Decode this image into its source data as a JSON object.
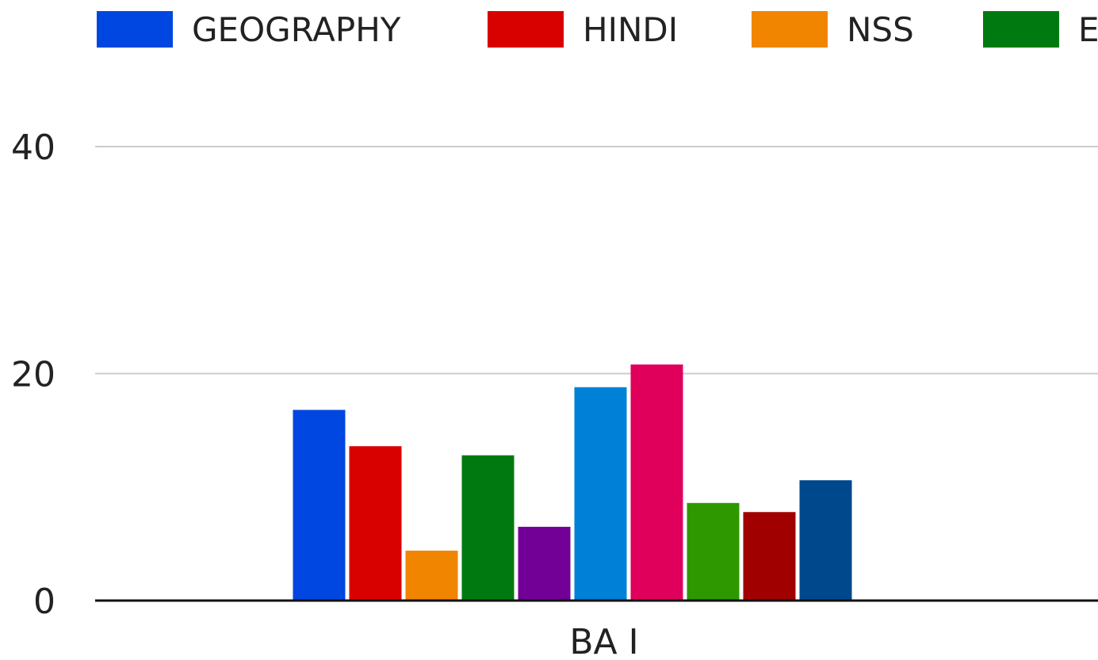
{
  "chart_data": {
    "type": "bar",
    "categories": [
      "BA I"
    ],
    "series": [
      {
        "name": "GEOGRAPHY",
        "color": "#0046e0",
        "values": [
          16.8
        ]
      },
      {
        "name": "HINDI",
        "color": "#d90000",
        "values": [
          13.6
        ]
      },
      {
        "name": "NSS",
        "color": "#f28500",
        "values": [
          4.4
        ]
      },
      {
        "name": "E",
        "color": "#007a10",
        "values": [
          12.8
        ]
      },
      {
        "color": "#720096",
        "values": [
          6.5
        ]
      },
      {
        "color": "#0080d6",
        "values": [
          18.8
        ]
      },
      {
        "color": "#e0005c",
        "values": [
          20.8
        ]
      },
      {
        "color": "#2e9800",
        "values": [
          8.6
        ]
      },
      {
        "color": "#a00000",
        "values": [
          7.8
        ]
      },
      {
        "color": "#00488c",
        "values": [
          10.6
        ]
      }
    ],
    "yticks": [
      "0",
      "20",
      "40"
    ],
    "ylim": [
      0,
      40
    ],
    "grid": true,
    "legend": "top",
    "title": "",
    "xlabel": "",
    "ylabel": ""
  }
}
